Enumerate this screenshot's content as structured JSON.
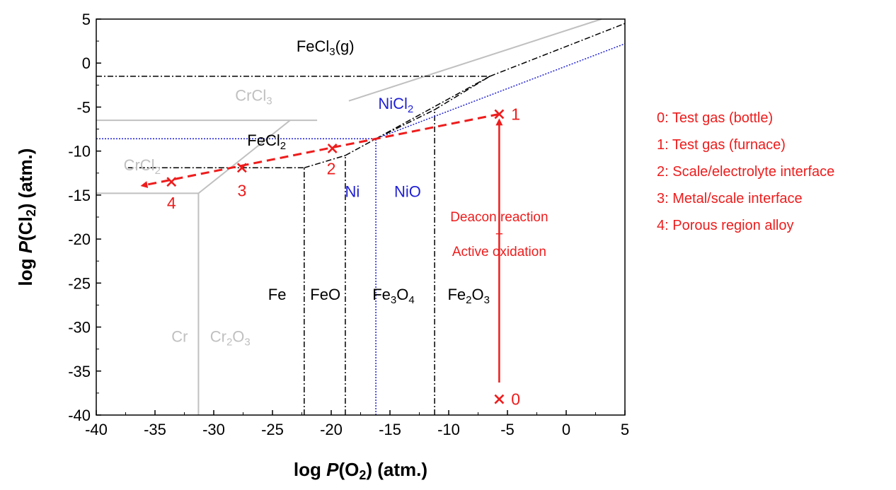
{
  "chart_data": {
    "type": "line",
    "title": "",
    "xlabel": "log P(O2) (atm.)",
    "ylabel": "log P(Cl2) (atm.)",
    "xlabel_parts": {
      "pre": "log ",
      "italic": "P",
      "mid": "(O",
      "sub": "2",
      "post": ") (atm.)"
    },
    "ylabel_parts": {
      "pre": "log ",
      "italic": "P",
      "mid": "(Cl",
      "sub": "2",
      "post": ") (atm.)"
    },
    "xlim": [
      -40,
      5
    ],
    "ylim": [
      -40,
      5
    ],
    "xticks": [
      -40,
      -35,
      -30,
      -25,
      -20,
      -15,
      -10,
      -5,
      0,
      5
    ],
    "yticks": [
      5,
      0,
      -5,
      -10,
      -15,
      -20,
      -25,
      -30,
      -35,
      -40
    ],
    "grid": false,
    "colors": {
      "fe": "#000000",
      "cr": "#c0c0c0",
      "ni": "#1f1fd6",
      "path": "#ee1c1c"
    },
    "boundaries": {
      "cr": [
        {
          "x": [
            -40,
            -31.3
          ],
          "y": [
            -14.8,
            -14.8
          ]
        },
        {
          "x": [
            -31.3,
            -31.3
          ],
          "y": [
            -40,
            -14.8
          ]
        },
        {
          "x": [
            -31.3,
            -23.5
          ],
          "y": [
            -14.8,
            -6.5
          ]
        },
        {
          "x": [
            -40,
            -23.5
          ],
          "y": [
            -6.5,
            -6.5
          ]
        },
        {
          "x": [
            -23.5,
            -21.2
          ],
          "y": [
            -6.5,
            -6.5
          ]
        },
        {
          "x": [
            -18.5,
            3
          ],
          "y": [
            -4.3,
            5
          ]
        }
      ],
      "fe": [
        {
          "x": [
            -40,
            -6.5
          ],
          "y": [
            -1.5,
            -1.5
          ]
        },
        {
          "x": [
            -37.3,
            -22.3
          ],
          "y": [
            -11.9,
            -11.9
          ]
        },
        {
          "x": [
            -22.3,
            -22.3
          ],
          "y": [
            -40,
            -11.9
          ]
        },
        {
          "x": [
            -18.8,
            -18.8
          ],
          "y": [
            -40,
            -10.5
          ]
        },
        {
          "x": [
            -11.2,
            -11.2
          ],
          "y": [
            -40,
            -5.3
          ]
        },
        {
          "x": [
            -22.3,
            -18.8
          ],
          "y": [
            -11.9,
            -10.5
          ]
        },
        {
          "x": [
            -18.8,
            -16.2
          ],
          "y": [
            -10.5,
            -8.6
          ]
        },
        {
          "x": [
            -16.2,
            -11.2
          ],
          "y": [
            -8.6,
            -5.3
          ]
        },
        {
          "x": [
            -11.2,
            -6.5
          ],
          "y": [
            -5.3,
            -1.5
          ]
        },
        {
          "x": [
            -16.2,
            -6.5
          ],
          "y": [
            -8.6,
            -1.5
          ]
        },
        {
          "x": [
            -6.5,
            5
          ],
          "y": [
            -1.5,
            4.5
          ]
        }
      ],
      "ni": [
        {
          "x": [
            -40,
            -16.2
          ],
          "y": [
            -8.6,
            -8.6
          ]
        },
        {
          "x": [
            -16.2,
            -16.2
          ],
          "y": [
            -40,
            -8.6
          ]
        },
        {
          "x": [
            -16.2,
            5
          ],
          "y": [
            -8.6,
            2.2
          ]
        }
      ]
    },
    "regions": [
      {
        "parts": [
          [
            "FeCl",
            false
          ],
          [
            "3",
            true
          ],
          [
            "(g)",
            false
          ]
        ],
        "x": -20.5,
        "y": 1.3,
        "color": "fe"
      },
      {
        "parts": [
          [
            "CrCl",
            false
          ],
          [
            "3",
            true
          ]
        ],
        "x": -26.6,
        "y": -4.3,
        "color": "cr"
      },
      {
        "parts": [
          [
            "NiCl",
            false
          ],
          [
            "2",
            true
          ]
        ],
        "x": -14.5,
        "y": -5.2,
        "color": "ni"
      },
      {
        "parts": [
          [
            "FeCl",
            false
          ],
          [
            "2",
            true
          ]
        ],
        "x": -25.5,
        "y": -9.4,
        "color": "fe"
      },
      {
        "parts": [
          [
            "CrCl",
            false
          ],
          [
            "2",
            true
          ]
        ],
        "x": -36.1,
        "y": -12.2,
        "color": "cr"
      },
      {
        "parts": [
          [
            "Ni",
            false
          ]
        ],
        "x": -18.2,
        "y": -15.2,
        "color": "ni"
      },
      {
        "parts": [
          [
            "NiO",
            false
          ]
        ],
        "x": -13.5,
        "y": -15.2,
        "color": "ni"
      },
      {
        "parts": [
          [
            "Fe",
            false
          ]
        ],
        "x": -24.6,
        "y": -26.9,
        "color": "fe"
      },
      {
        "parts": [
          [
            "FeO",
            false
          ]
        ],
        "x": -20.5,
        "y": -26.9,
        "color": "fe"
      },
      {
        "parts": [
          [
            "Fe",
            false
          ],
          [
            "3",
            true
          ],
          [
            "O",
            false
          ],
          [
            "4",
            true
          ]
        ],
        "x": -14.7,
        "y": -26.9,
        "color": "fe"
      },
      {
        "parts": [
          [
            "Fe",
            false
          ],
          [
            "2",
            true
          ],
          [
            "O",
            false
          ],
          [
            "3",
            true
          ]
        ],
        "x": -8.3,
        "y": -26.9,
        "color": "fe"
      },
      {
        "parts": [
          [
            "Cr",
            false
          ]
        ],
        "x": -32.9,
        "y": -31.7,
        "color": "cr"
      },
      {
        "parts": [
          [
            "Cr",
            false
          ],
          [
            "2",
            true
          ],
          [
            "O",
            false
          ],
          [
            "3",
            true
          ]
        ],
        "x": -28.6,
        "y": -31.7,
        "color": "cr"
      }
    ],
    "points": [
      {
        "label": "0",
        "x": -5.7,
        "y": -38.2,
        "lx": -4.3,
        "ly": -38.2,
        "anchor": "middle"
      },
      {
        "label": "1",
        "x": -5.7,
        "y": -5.8,
        "lx": -4.3,
        "ly": -5.8,
        "anchor": "middle"
      },
      {
        "label": "2",
        "x": -19.9,
        "y": -9.7,
        "lx": -20.0,
        "ly": -12.0,
        "anchor": "middle"
      },
      {
        "label": "3",
        "x": -27.6,
        "y": -11.9,
        "lx": -27.6,
        "ly": -14.5,
        "anchor": "middle"
      },
      {
        "label": "4",
        "x": -33.6,
        "y": -13.5,
        "lx": -33.6,
        "ly": -15.9,
        "anchor": "middle"
      }
    ],
    "path": {
      "dashed": {
        "x": [
          -5.7,
          -36.0
        ],
        "y": [
          -5.8,
          -13.9
        ]
      },
      "vertical": {
        "x": [
          -5.7,
          -5.7
        ],
        "y": [
          -36.3,
          -6.6
        ]
      }
    },
    "annotation": {
      "lines": [
        "Deacon reaction",
        "+",
        "Active oxidation"
      ],
      "x": -5.7,
      "y": [
        -18.0,
        -19.9,
        -21.9
      ]
    },
    "legend": {
      "placement": "right",
      "entries": [
        "0: Test gas (bottle)",
        "1: Test gas (furnace)",
        "2: Scale/electrolyte interface",
        "3: Metal/scale interface",
        "4: Porous region alloy"
      ]
    }
  }
}
